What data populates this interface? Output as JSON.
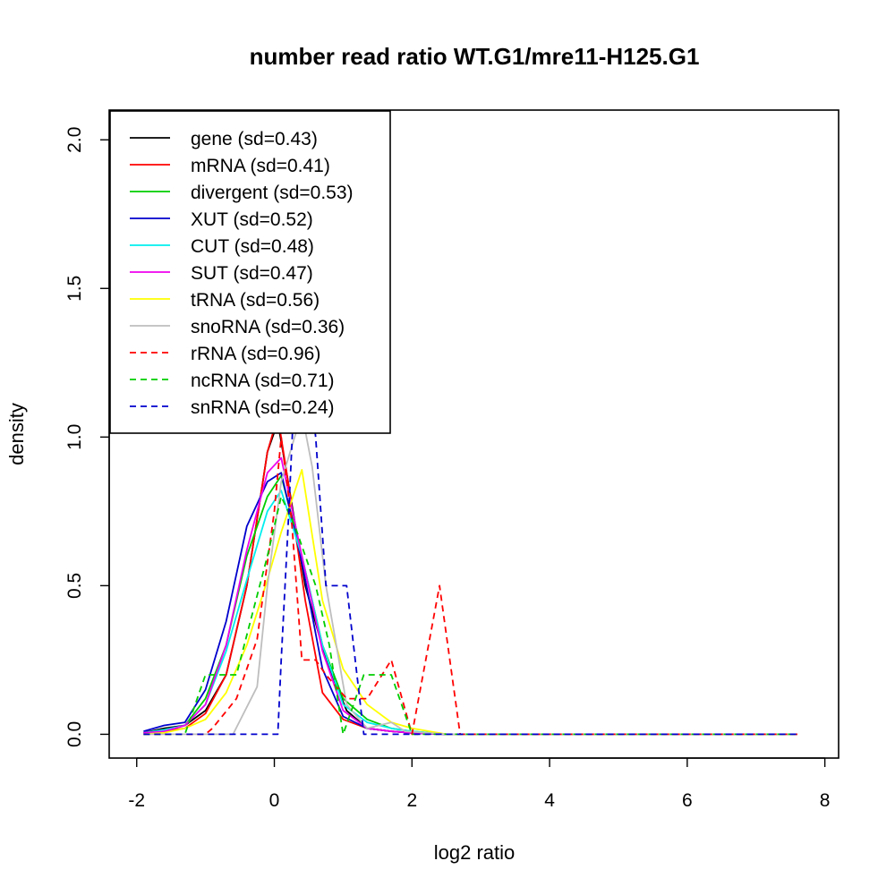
{
  "chart_data": {
    "type": "line",
    "title": "number read ratio WT.G1/mre11-H125.G1",
    "xlabel": "log2 ratio",
    "ylabel": "density",
    "xlim": [
      -2.4,
      8.2
    ],
    "ylim": [
      -0.08,
      2.1
    ],
    "xticks": [
      -2,
      0,
      2,
      4,
      6,
      8
    ],
    "xtick_labels": [
      "-2",
      "0",
      "2",
      "4",
      "6",
      "8"
    ],
    "yticks": [
      0.0,
      0.5,
      1.0,
      1.5,
      2.0
    ],
    "ytick_labels": [
      "0.0",
      "0.5",
      "1.0",
      "1.5",
      "2.0"
    ],
    "legend_position": "top-left",
    "series": [
      {
        "name": "gene",
        "label": "gene (sd=0.43)",
        "color": "#000000",
        "dash": "solid",
        "x": [
          -1.9,
          -1.6,
          -1.3,
          -1.0,
          -0.7,
          -0.4,
          -0.1,
          0.05,
          0.2,
          0.45,
          0.75,
          1.05,
          1.35,
          1.7,
          2.0,
          2.5,
          7.6
        ],
        "y": [
          0.005,
          0.02,
          0.03,
          0.08,
          0.2,
          0.5,
          0.95,
          1.05,
          0.85,
          0.5,
          0.25,
          0.08,
          0.02,
          0.01,
          0.005,
          0,
          0
        ]
      },
      {
        "name": "mRNA",
        "label": "mRNA (sd=0.41)",
        "color": "#ff0000",
        "dash": "solid",
        "x": [
          -1.9,
          -1.6,
          -1.3,
          -1.0,
          -0.7,
          -0.4,
          -0.1,
          0.05,
          0.2,
          0.45,
          0.7,
          1.0,
          1.35,
          1.7,
          2.0,
          2.5,
          7.6
        ],
        "y": [
          0.005,
          0.01,
          0.02,
          0.07,
          0.2,
          0.5,
          0.95,
          1.07,
          0.85,
          0.45,
          0.14,
          0.05,
          0.02,
          0.01,
          0.005,
          0,
          0
        ]
      },
      {
        "name": "divergent",
        "label": "divergent (sd=0.53)",
        "color": "#00cd00",
        "dash": "solid",
        "x": [
          -1.9,
          -1.6,
          -1.3,
          -1.0,
          -0.7,
          -0.4,
          -0.1,
          0.1,
          0.4,
          0.7,
          1.0,
          1.35,
          1.7,
          2.0,
          2.5,
          7.6
        ],
        "y": [
          0.005,
          0.01,
          0.03,
          0.12,
          0.3,
          0.6,
          0.8,
          0.87,
          0.6,
          0.3,
          0.12,
          0.05,
          0.02,
          0.01,
          0,
          0
        ]
      },
      {
        "name": "XUT",
        "label": "XUT (sd=0.52)",
        "color": "#0000cd",
        "dash": "solid",
        "x": [
          -1.9,
          -1.6,
          -1.3,
          -1.0,
          -0.7,
          -0.4,
          -0.1,
          0.1,
          0.4,
          0.7,
          1.0,
          1.35,
          1.7,
          2.0,
          2.5,
          7.6
        ],
        "y": [
          0.01,
          0.03,
          0.04,
          0.15,
          0.38,
          0.7,
          0.85,
          0.88,
          0.58,
          0.22,
          0.06,
          0.02,
          0.01,
          0.005,
          0,
          0
        ]
      },
      {
        "name": "CUT",
        "label": "CUT (sd=0.48)",
        "color": "#00eeee",
        "dash": "solid",
        "x": [
          -1.9,
          -1.6,
          -1.3,
          -1.0,
          -0.7,
          -0.4,
          -0.1,
          0.1,
          0.4,
          0.7,
          1.0,
          1.35,
          1.7,
          2.0,
          2.5,
          7.6
        ],
        "y": [
          0.005,
          0.015,
          0.03,
          0.1,
          0.28,
          0.52,
          0.75,
          0.82,
          0.6,
          0.3,
          0.1,
          0.04,
          0.02,
          0.01,
          0,
          0
        ]
      },
      {
        "name": "SUT",
        "label": "SUT (sd=0.47)",
        "color": "#ee00ee",
        "dash": "solid",
        "x": [
          -1.9,
          -1.6,
          -1.3,
          -1.0,
          -0.7,
          -0.4,
          -0.1,
          0.1,
          0.4,
          0.7,
          1.0,
          1.35,
          1.7,
          2.0,
          2.5,
          7.6
        ],
        "y": [
          0.005,
          0.01,
          0.03,
          0.1,
          0.3,
          0.62,
          0.88,
          0.93,
          0.6,
          0.28,
          0.08,
          0.02,
          0.01,
          0.005,
          0,
          0
        ]
      },
      {
        "name": "tRNA",
        "label": "tRNA (sd=0.56)",
        "color": "#ffff00",
        "dash": "solid",
        "x": [
          -1.9,
          -1.6,
          -1.3,
          -1.0,
          -0.7,
          -0.4,
          -0.1,
          0.1,
          0.4,
          0.7,
          1.0,
          1.35,
          1.7,
          2.0,
          2.5,
          7.6
        ],
        "y": [
          0,
          0.005,
          0.02,
          0.05,
          0.14,
          0.3,
          0.52,
          0.68,
          0.89,
          0.45,
          0.22,
          0.1,
          0.04,
          0.02,
          0,
          0
        ]
      },
      {
        "name": "snoRNA",
        "label": "snoRNA (sd=0.36)",
        "color": "#bebebe",
        "dash": "solid",
        "x": [
          -1.9,
          -1.0,
          -0.6,
          -0.25,
          -0.1,
          0.1,
          0.4,
          0.55,
          0.75,
          1.05,
          1.35,
          1.7,
          1.9,
          2.5,
          7.6
        ],
        "y": [
          0,
          0,
          0,
          0.16,
          0.5,
          0.85,
          1.08,
          0.9,
          0.5,
          0.1,
          0.02,
          0.04,
          0.01,
          0,
          0
        ]
      },
      {
        "name": "rRNA",
        "label": "rRNA (sd=0.96)",
        "color": "#ff0000",
        "dash": "dashed",
        "x": [
          -1.9,
          -1.0,
          -0.9,
          -0.55,
          -0.25,
          0.0,
          0.1,
          0.25,
          0.4,
          0.6,
          0.75,
          1.05,
          1.35,
          1.7,
          2.0,
          2.4,
          2.7,
          7.6
        ],
        "y": [
          0,
          0,
          0.02,
          0.12,
          0.32,
          0.75,
          1.0,
          0.72,
          0.25,
          0.25,
          0.2,
          0.12,
          0.12,
          0.25,
          0.0,
          0.5,
          0.0,
          0
        ]
      },
      {
        "name": "ncRNA",
        "label": "ncRNA (sd=0.71)",
        "color": "#00cd00",
        "dash": "dashed",
        "x": [
          -1.9,
          -1.3,
          -1.0,
          -0.55,
          -0.1,
          0.1,
          0.3,
          0.6,
          0.8,
          1.0,
          1.3,
          1.7,
          2.0,
          2.5,
          7.6
        ],
        "y": [
          0,
          0,
          0.2,
          0.2,
          0.6,
          0.8,
          0.7,
          0.5,
          0.3,
          0.0,
          0.2,
          0.2,
          0.0,
          0,
          0
        ]
      },
      {
        "name": "snRNA",
        "label": "snRNA (sd=0.24)",
        "color": "#0000cd",
        "dash": "dashed",
        "x": [
          -1.9,
          0.05,
          0.1,
          0.2,
          0.3,
          0.5,
          0.6,
          0.75,
          1.05,
          1.3,
          1.5,
          7.6
        ],
        "y": [
          0,
          0,
          0.25,
          0.7,
          1.2,
          1.2,
          1.0,
          0.5,
          0.5,
          0.0,
          0.0,
          0
        ]
      }
    ]
  }
}
